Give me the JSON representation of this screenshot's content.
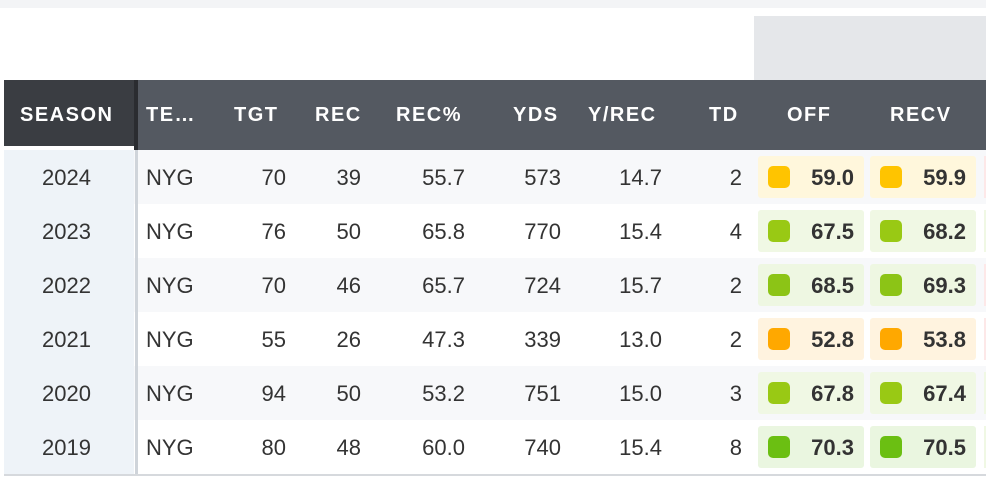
{
  "headers": {
    "season": "SEASON",
    "team": "TE…",
    "tgt": "TGT",
    "rec": "REC",
    "rec_pct": "REC%",
    "yds": "YDS",
    "y_rec": "Y/REC",
    "td": "TD",
    "off": "OFF",
    "recv": "RECV"
  },
  "rows": [
    {
      "season": "2024",
      "team": "NYG",
      "tgt": "70",
      "rec": "39",
      "rec_pct": "55.7",
      "yds": "573",
      "y_rec": "14.7",
      "td": "2",
      "off": "59.0",
      "recv": "59.9",
      "off_color": "#ffc400",
      "recv_color": "#ffc400",
      "off_bg": "#fff7dc",
      "recv_bg": "#fff7dc",
      "edge": "#fde8e8"
    },
    {
      "season": "2023",
      "team": "NYG",
      "tgt": "76",
      "rec": "50",
      "rec_pct": "65.8",
      "yds": "770",
      "y_rec": "15.4",
      "td": "4",
      "off": "67.5",
      "recv": "68.2",
      "off_color": "#99c914",
      "recv_color": "#99c914",
      "off_bg": "#f0f8e4",
      "recv_bg": "#f0f8e4",
      "edge": "#f0f8e4"
    },
    {
      "season": "2022",
      "team": "NYG",
      "tgt": "70",
      "rec": "46",
      "rec_pct": "65.7",
      "yds": "724",
      "y_rec": "15.7",
      "td": "2",
      "off": "68.5",
      "recv": "69.3",
      "off_color": "#8cc416",
      "recv_color": "#8cc416",
      "off_bg": "#eef7e2",
      "recv_bg": "#eef7e2",
      "edge": "#fde8e8"
    },
    {
      "season": "2021",
      "team": "NYG",
      "tgt": "55",
      "rec": "26",
      "rec_pct": "47.3",
      "yds": "339",
      "y_rec": "13.0",
      "td": "2",
      "off": "52.8",
      "recv": "53.8",
      "off_color": "#ffa800",
      "recv_color": "#ffa800",
      "off_bg": "#fff3df",
      "recv_bg": "#fff3df",
      "edge": "#fde8e8"
    },
    {
      "season": "2020",
      "team": "NYG",
      "tgt": "94",
      "rec": "50",
      "rec_pct": "53.2",
      "yds": "751",
      "y_rec": "15.0",
      "td": "3",
      "off": "67.8",
      "recv": "67.4",
      "off_color": "#99c914",
      "recv_color": "#99c914",
      "off_bg": "#f0f8e4",
      "recv_bg": "#f0f8e4",
      "edge": "#f0f8e4"
    },
    {
      "season": "2019",
      "team": "NYG",
      "tgt": "80",
      "rec": "48",
      "rec_pct": "60.0",
      "yds": "740",
      "y_rec": "15.4",
      "td": "8",
      "off": "70.3",
      "recv": "70.5",
      "off_color": "#6bbf12",
      "recv_color": "#6bbf12",
      "off_bg": "#eaf6e0",
      "recv_bg": "#eaf6e0",
      "edge": "#f0f8e4"
    }
  ]
}
